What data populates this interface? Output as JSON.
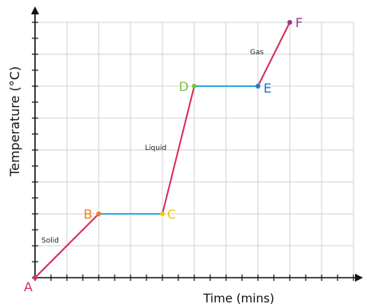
{
  "chart_data": {
    "type": "line",
    "xlabel": "Time (mins)",
    "ylabel": "Temperature (°C)",
    "xlim": [
      0,
      10
    ],
    "ylim": [
      0,
      8
    ],
    "grid": true,
    "colors": {
      "heating": "#d62f57",
      "plateau": "#29abe2",
      "axis": "#111111",
      "grid": "#d0d0d0"
    },
    "points": [
      {
        "label": "A",
        "x": 0,
        "y": 0,
        "color": "#d62f57"
      },
      {
        "label": "B",
        "x": 2,
        "y": 2,
        "color": "#ef7d22"
      },
      {
        "label": "C",
        "x": 4,
        "y": 2,
        "color": "#f2c811"
      },
      {
        "label": "D",
        "x": 5,
        "y": 6,
        "color": "#7dc242"
      },
      {
        "label": "E",
        "x": 7,
        "y": 6,
        "color": "#1f78c8"
      },
      {
        "label": "F",
        "x": 8,
        "y": 8,
        "color": "#8e3a8c"
      }
    ],
    "segments": [
      {
        "from": 0,
        "to": 1,
        "kind": "heating"
      },
      {
        "from": 1,
        "to": 2,
        "kind": "plateau"
      },
      {
        "from": 2,
        "to": 3,
        "kind": "heating"
      },
      {
        "from": 3,
        "to": 4,
        "kind": "plateau"
      },
      {
        "from": 4,
        "to": 5,
        "kind": "heating"
      }
    ],
    "annotations": [
      {
        "text": "Solid",
        "x": 0.2,
        "y": 1.1
      },
      {
        "text": "Liquid",
        "x": 3.45,
        "y": 4.0
      },
      {
        "text": "Gas",
        "x": 6.75,
        "y": 7.0
      }
    ]
  }
}
